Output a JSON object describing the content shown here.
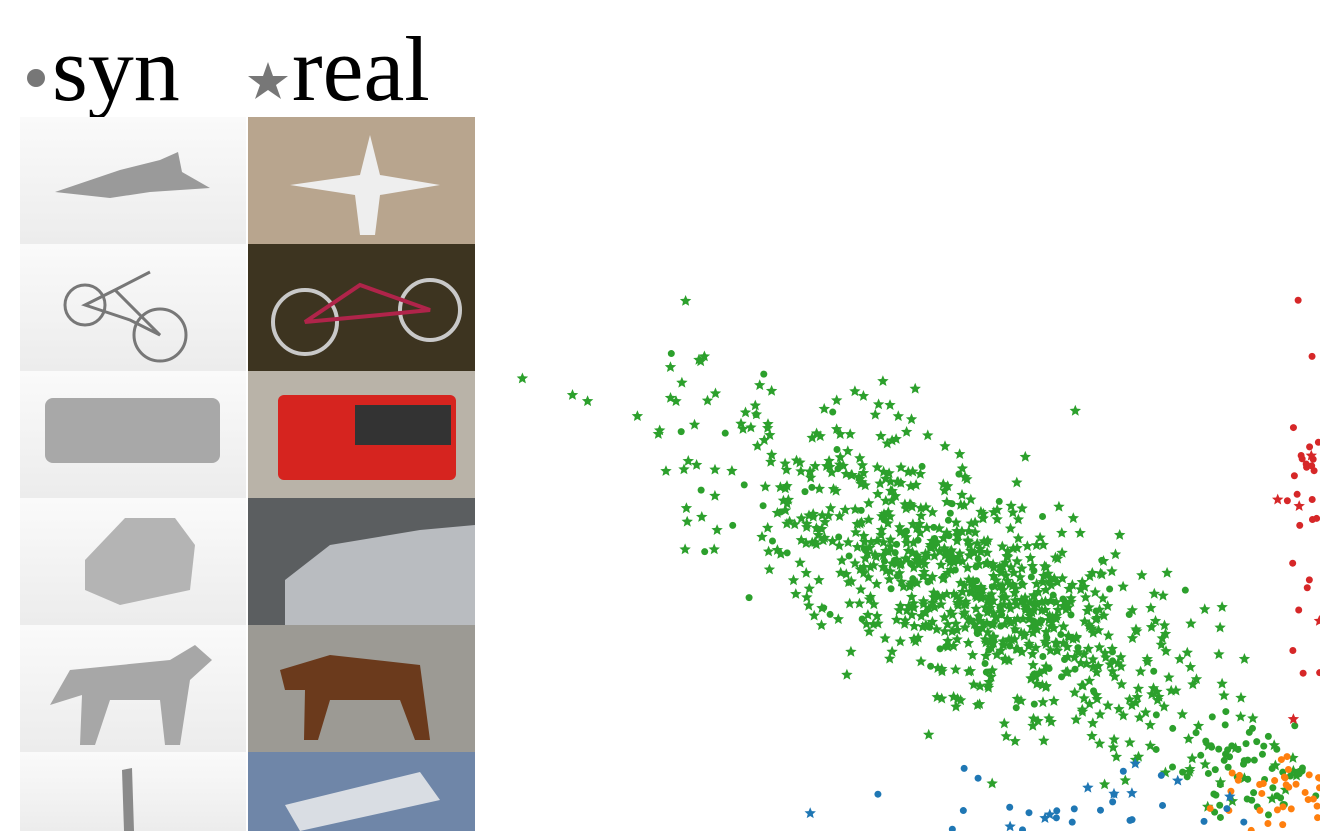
{
  "legend": {
    "synthetic": "syn",
    "real": "real"
  }
}
